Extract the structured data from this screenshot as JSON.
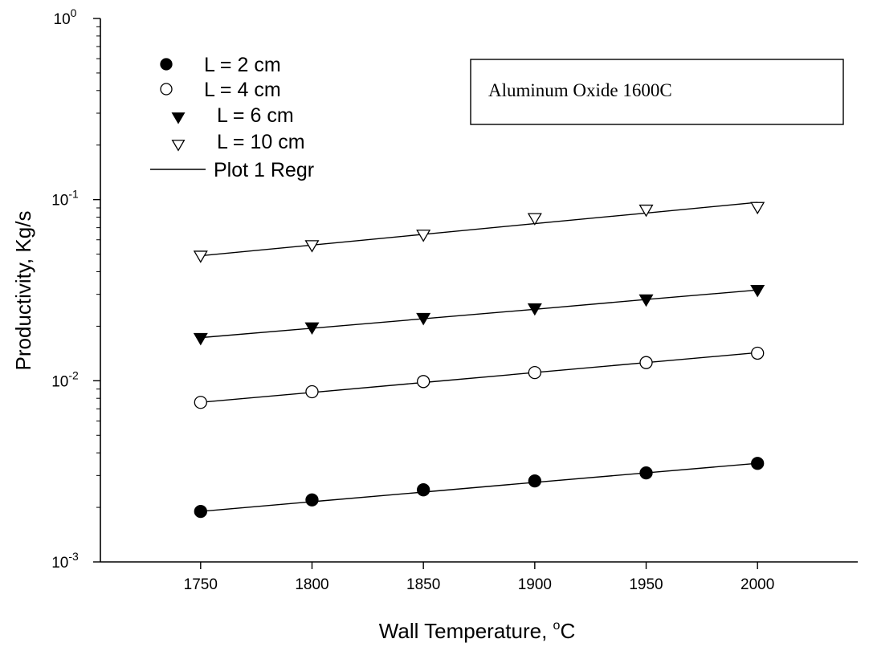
{
  "chart_data": {
    "type": "scatter",
    "title": "",
    "xlabel": "Wall Temperature, ",
    "xlabel_sup": "o",
    "xlabel_unit": "C",
    "ylabel": "Productivity, Kg/s",
    "xlim": [
      1705,
      2045
    ],
    "ylim": [
      0.001,
      1
    ],
    "yscale": "log",
    "grid": false,
    "legend_position": "top-left",
    "x_ticks": [
      1750,
      1800,
      1850,
      1900,
      1950,
      2000
    ],
    "x_tick_labels": [
      "1750",
      "1800",
      "1850",
      "1900",
      "1950",
      "2000"
    ],
    "y_ticks": [
      {
        "value": 1,
        "base": "10",
        "exp": "0"
      },
      {
        "value": 0.1,
        "base": "10",
        "exp": "-1"
      },
      {
        "value": 0.01,
        "base": "10",
        "exp": "-2"
      },
      {
        "value": 0.001,
        "base": "10",
        "exp": "-3"
      }
    ],
    "x": [
      1750,
      1800,
      1850,
      1900,
      1950,
      2000
    ],
    "series": [
      {
        "name": "L = 2 cm",
        "marker": "filled-circle",
        "values": [
          0.0019,
          0.0022,
          0.0025,
          0.0028,
          0.0031,
          0.0035
        ],
        "fit": [
          0.0019,
          0.00215,
          0.00243,
          0.00275,
          0.0031,
          0.0035
        ]
      },
      {
        "name": "L = 4 cm",
        "marker": "open-circle",
        "values": [
          0.0076,
          0.0087,
          0.0099,
          0.0111,
          0.0126,
          0.0142
        ],
        "fit": [
          0.0076,
          0.00862,
          0.00978,
          0.0111,
          0.0126,
          0.0143
        ]
      },
      {
        "name": "L = 6 cm",
        "marker": "filled-triangle-down",
        "values": [
          0.0172,
          0.0197,
          0.0222,
          0.0251,
          0.0281,
          0.0317
        ],
        "fit": [
          0.0173,
          0.0195,
          0.022,
          0.0248,
          0.0281,
          0.0317
        ]
      },
      {
        "name": "L = 10 cm",
        "marker": "open-triangle-down",
        "values": [
          0.049,
          0.056,
          0.064,
          0.079,
          0.088,
          0.091
        ],
        "fit": [
          0.049,
          0.0561,
          0.0643,
          0.0737,
          0.0843,
          0.0966
        ]
      }
    ],
    "regression_legend": "Plot 1 Regr",
    "annotation": "Aluminum Oxide 1600C"
  }
}
